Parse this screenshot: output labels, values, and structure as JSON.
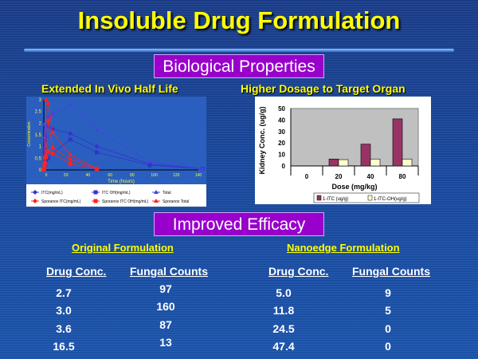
{
  "title": "Insoluble Drug Formulation",
  "section1": "Biological Properties",
  "section2": "Improved Efficacy",
  "left_subtitle": "Extended In Vivo Half Life",
  "right_subtitle": "Higher Dosage to Target Organ",
  "chart_data": [
    {
      "type": "line",
      "title": "Extended In Vivo Half Life",
      "xlabel": "Time (hours)",
      "ylabel": "Concentration",
      "xlim": [
        0,
        140
      ],
      "ylim": [
        0,
        3
      ],
      "xticks": [
        "0",
        "20",
        "40",
        "60",
        "80",
        "100",
        "120",
        "140"
      ],
      "yticks": [
        "0",
        "0.5",
        "1",
        "1.5",
        "2",
        "2.5",
        "3"
      ],
      "series": [
        {
          "name": "ITC(mg/mL)",
          "color": "#3333cc",
          "marker": "diamond",
          "x": [
            0,
            0.5,
            1,
            2,
            4,
            8,
            24,
            48,
            96,
            144
          ],
          "y": [
            0,
            0.9,
            1.25,
            1.4,
            1.85,
            1.75,
            1.55,
            1.0,
            0.25,
            0.05
          ]
        },
        {
          "name": "ITC OH(mg/mL)",
          "color": "#3333cc",
          "marker": "square",
          "x": [
            0,
            0.5,
            1,
            2,
            4,
            8,
            24,
            48,
            96,
            144
          ],
          "y": [
            0,
            0.1,
            0.2,
            0.4,
            0.5,
            0.7,
            1.3,
            0.75,
            0.2,
            0.05
          ]
        },
        {
          "name": "Total",
          "color": "#4444dd",
          "marker": "triangle",
          "x": [
            0,
            0.5,
            1,
            2,
            4,
            8,
            24,
            48,
            96,
            144
          ],
          "y": [
            0,
            1.95,
            1.4,
            1.8,
            2.3,
            2.4,
            2.8,
            1.7,
            0.35,
            0.05
          ]
        },
        {
          "name": "Sporanox ITC(mg/mL)",
          "color": "#ff2222",
          "marker": "diamond",
          "x": [
            0,
            0.5,
            1,
            2,
            4,
            8,
            24,
            48
          ],
          "y": [
            0,
            0.2,
            0.5,
            0.6,
            2.1,
            0.95,
            0.45,
            0.05
          ]
        },
        {
          "name": "Sporanox ITC OH(mg/mL)",
          "color": "#ff2222",
          "marker": "square",
          "x": [
            0,
            0.5,
            1,
            2,
            4,
            8,
            24,
            48
          ],
          "y": [
            0,
            0.1,
            0.3,
            0.55,
            0.8,
            0.7,
            0.25,
            0.05
          ]
        },
        {
          "name": "Sporanox Total",
          "color": "#ff2222",
          "marker": "triangle",
          "x": [
            0,
            0.5,
            1,
            2,
            4,
            8,
            24,
            48
          ],
          "y": [
            0,
            0.3,
            0.6,
            3.0,
            2.85,
            1.6,
            0.65,
            0.05
          ]
        }
      ],
      "legend": "bottom"
    },
    {
      "type": "bar",
      "title": "Higher Dosage to Target Organ",
      "xlabel": "Dose (mg/kg)",
      "ylabel": "Kidney Conc. (ug/g)",
      "categories": [
        "0",
        "20",
        "40",
        "80"
      ],
      "ylim": [
        0,
        50
      ],
      "yticks": [
        "0",
        "10",
        "20",
        "30",
        "40",
        "50"
      ],
      "series": [
        {
          "name": "1-ITC (ug/g)",
          "color": "#993366",
          "values": [
            0,
            6,
            19,
            41
          ]
        },
        {
          "name": "1-ITC-OH(ug/g)",
          "color": "#ffffcc",
          "values": [
            0,
            5.5,
            6,
            6
          ]
        }
      ],
      "legend": "bottom"
    }
  ],
  "original": {
    "heading": "Original Formulation",
    "col1": "Drug Conc.",
    "col2": "Fungal Counts",
    "rows": [
      [
        "2.7",
        "97"
      ],
      [
        "3.0",
        "160"
      ],
      [
        "3.6",
        "87"
      ],
      [
        "16.5",
        "13"
      ]
    ]
  },
  "nanoedge": {
    "heading": "Nanoedge Formulation",
    "col1": "Drug Conc.",
    "col2": "Fungal Counts",
    "rows": [
      [
        "5.0",
        "9"
      ],
      [
        "11.8",
        "5"
      ],
      [
        "24.5",
        "0"
      ],
      [
        "47.4",
        "0"
      ]
    ]
  }
}
